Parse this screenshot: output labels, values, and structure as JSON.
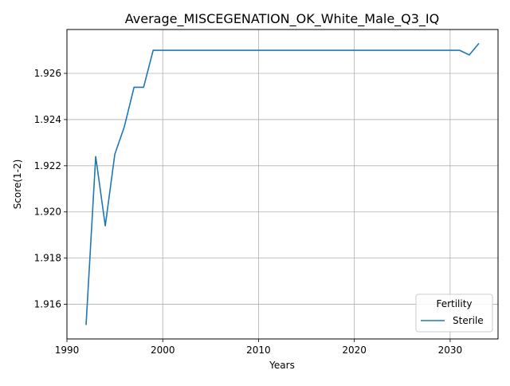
{
  "chart_data": {
    "type": "line",
    "title": "Average_MISCEGENATION_OK_White_Male_Q3_IQ",
    "xlabel": "Years",
    "ylabel": "Score(1-2)",
    "xlim": [
      1990,
      2035
    ],
    "ylim": [
      1.9145,
      1.9279
    ],
    "xticks": [
      1990,
      2000,
      2010,
      2020,
      2030
    ],
    "yticks": [
      1.916,
      1.918,
      1.92,
      1.922,
      1.924,
      1.926
    ],
    "ytick_labels": [
      "1.916",
      "1.918",
      "1.920",
      "1.922",
      "1.924",
      "1.926"
    ],
    "grid": true,
    "legend": {
      "title": "Fertility",
      "placement": "lower-right"
    },
    "series": [
      {
        "name": "Sterile",
        "color": "#1f77b4",
        "x": [
          1992,
          1993,
          1994,
          1995,
          1996,
          1997,
          1998,
          1999,
          2000,
          2010,
          2020,
          2030,
          2031,
          2032,
          2033
        ],
        "y": [
          1.9151,
          1.9224,
          1.9194,
          1.9225,
          1.9237,
          1.9254,
          1.9254,
          1.927,
          1.927,
          1.927,
          1.927,
          1.927,
          1.927,
          1.9268,
          1.9273
        ]
      }
    ]
  }
}
